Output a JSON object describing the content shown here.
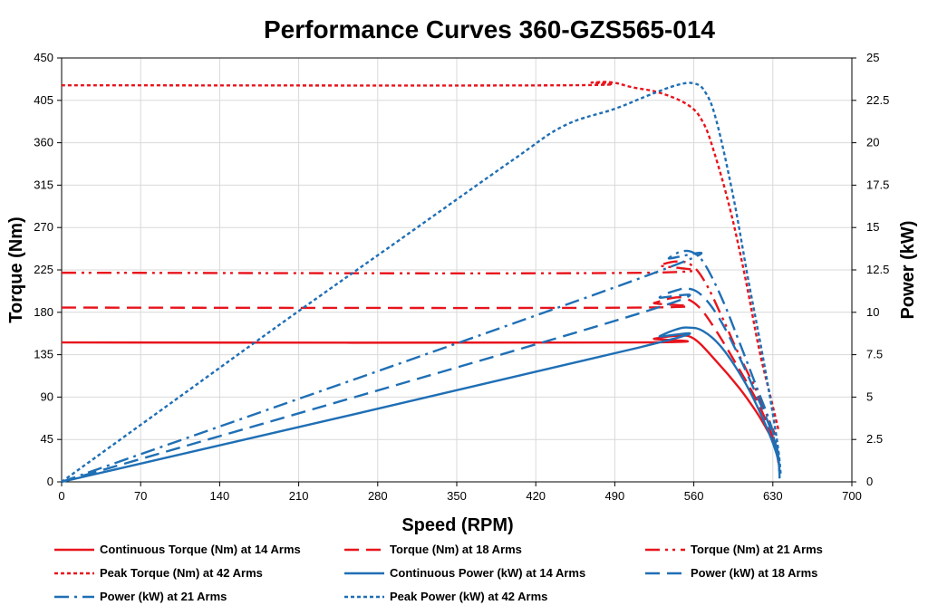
{
  "chart_data": {
    "type": "line",
    "title": "Performance Curves 360-GZS565-014",
    "xlabel": "Speed (RPM)",
    "ylabel": "Torque (Nm)",
    "y2label": "Power (kW)",
    "xlim": [
      0,
      700
    ],
    "ylim": [
      0,
      450
    ],
    "y2lim": [
      0,
      25
    ],
    "x_ticks": [
      "0",
      "70",
      "140",
      "210",
      "280",
      "350",
      "420",
      "490",
      "560",
      "630",
      "700"
    ],
    "y_ticks": [
      "0",
      "45",
      "90",
      "135",
      "180",
      "225",
      "270",
      "315",
      "360",
      "405",
      "450"
    ],
    "y2_ticks": [
      "0",
      "2.5",
      "5",
      "7.5",
      "10",
      "12.5",
      "15",
      "17.5",
      "20",
      "22.5",
      "25"
    ],
    "grid": true,
    "legend_position": "bottom",
    "colors": {
      "torque": "#e8141c",
      "power": "#1f6fb5"
    },
    "series": [
      {
        "name": "Continuous Torque (Nm) at 14 Arms",
        "axis": "left",
        "color": "#e8141c",
        "dash": "solid",
        "points": [
          [
            0,
            148
          ],
          [
            510,
            148
          ],
          [
            525,
            152
          ],
          [
            545,
            155
          ],
          [
            560,
            152
          ],
          [
            580,
            128
          ],
          [
            600,
            100
          ],
          [
            615,
            75
          ],
          [
            625,
            55
          ],
          [
            632,
            38
          ],
          [
            635,
            20
          ]
        ]
      },
      {
        "name": "Torque (Nm) at 18 Arms",
        "axis": "left",
        "color": "#e8141c",
        "dash": "dash",
        "points": [
          [
            0,
            185
          ],
          [
            510,
            185
          ],
          [
            525,
            190
          ],
          [
            540,
            195
          ],
          [
            552,
            195
          ],
          [
            565,
            185
          ],
          [
            580,
            160
          ],
          [
            600,
            120
          ],
          [
            615,
            88
          ],
          [
            625,
            62
          ],
          [
            633,
            38
          ]
        ]
      },
      {
        "name": "Torque (Nm) at 21 Arms",
        "axis": "left",
        "color": "#e8141c",
        "dash": "dashdotdot",
        "points": [
          [
            0,
            222
          ],
          [
            515,
            222
          ],
          [
            530,
            230
          ],
          [
            545,
            234
          ],
          [
            558,
            230
          ],
          [
            570,
            212
          ],
          [
            585,
            175
          ],
          [
            600,
            135
          ],
          [
            615,
            98
          ],
          [
            625,
            70
          ],
          [
            632,
            50
          ]
        ]
      },
      {
        "name": "Peak Torque (Nm) at 42 Arms",
        "axis": "left",
        "color": "#e8141c",
        "dash": "dot",
        "points": [
          [
            0,
            421
          ],
          [
            445,
            421
          ],
          [
            470,
            424
          ],
          [
            488,
            424
          ],
          [
            505,
            419
          ],
          [
            530,
            413
          ],
          [
            555,
            400
          ],
          [
            568,
            382
          ],
          [
            578,
            350
          ],
          [
            592,
            290
          ],
          [
            605,
            220
          ],
          [
            618,
            140
          ],
          [
            628,
            90
          ],
          [
            635,
            55
          ]
        ]
      },
      {
        "name": "Continuous Power (kW) at 14 Arms",
        "axis": "right",
        "color": "#1f6fb5",
        "dash": "solid",
        "points": [
          [
            0,
            0
          ],
          [
            510,
            7.9
          ],
          [
            530,
            8.6
          ],
          [
            545,
            9.0
          ],
          [
            555,
            9.1
          ],
          [
            568,
            8.9
          ],
          [
            585,
            7.9
          ],
          [
            605,
            5.9
          ],
          [
            620,
            3.9
          ],
          [
            630,
            2.3
          ],
          [
            635,
            1.2
          ],
          [
            636,
            0.2
          ]
        ]
      },
      {
        "name": "Power (kW) at 18 Arms",
        "axis": "right",
        "color": "#1f6fb5",
        "dash": "dash",
        "points": [
          [
            0,
            0
          ],
          [
            510,
            9.9
          ],
          [
            530,
            10.9
          ],
          [
            545,
            11.3
          ],
          [
            555,
            11.4
          ],
          [
            567,
            11.0
          ],
          [
            582,
            9.7
          ],
          [
            600,
            7.4
          ],
          [
            615,
            5.2
          ],
          [
            627,
            3.3
          ],
          [
            634,
            1.8
          ],
          [
            636,
            0.4
          ]
        ]
      },
      {
        "name": "Power (kW) at 21 Arms",
        "axis": "right",
        "color": "#1f6fb5",
        "dash": "dashdot",
        "points": [
          [
            0,
            0
          ],
          [
            520,
            12.2
          ],
          [
            538,
            13.2
          ],
          [
            550,
            13.6
          ],
          [
            560,
            13.5
          ],
          [
            570,
            12.8
          ],
          [
            585,
            10.8
          ],
          [
            600,
            8.3
          ],
          [
            615,
            5.7
          ],
          [
            627,
            3.6
          ],
          [
            634,
            1.9
          ],
          [
            636,
            0.4
          ]
        ]
      },
      {
        "name": "Peak Power (kW) at 42 Arms",
        "axis": "right",
        "color": "#1f6fb5",
        "dash": "dot",
        "points": [
          [
            0,
            0
          ],
          [
            100,
            4.8
          ],
          [
            200,
            9.6
          ],
          [
            300,
            14.3
          ],
          [
            400,
            19.0
          ],
          [
            445,
            21.0
          ],
          [
            490,
            22.0
          ],
          [
            520,
            22.8
          ],
          [
            545,
            23.4
          ],
          [
            560,
            23.5
          ],
          [
            570,
            23.0
          ],
          [
            580,
            21.3
          ],
          [
            595,
            16.8
          ],
          [
            608,
            12.0
          ],
          [
            620,
            7.8
          ],
          [
            630,
            4.0
          ],
          [
            635,
            1.8
          ],
          [
            637,
            0.4
          ]
        ]
      }
    ]
  }
}
